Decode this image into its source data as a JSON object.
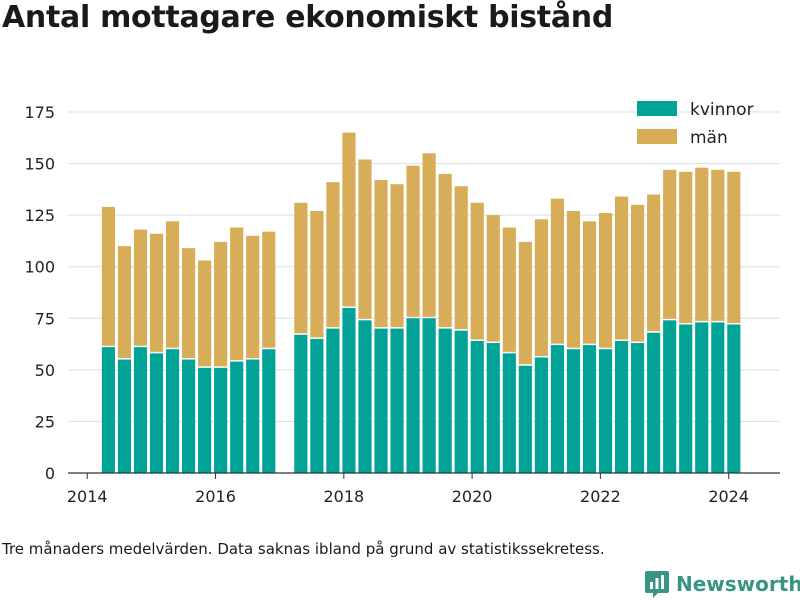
{
  "title": "Antal mottagare ekonomiskt bistånd",
  "caption": "Tre månaders medelvärden. Data saknas ibland på grund av statistikssekretess.",
  "brand": {
    "name": "Newsworthy",
    "color": "#3a9486"
  },
  "colors": {
    "kvinnor": "#00a396",
    "man": "#d8ad58",
    "grid": "#dddddd",
    "axis": "#333333"
  },
  "chart_data": {
    "type": "bar",
    "stacked": true,
    "x_unit": "year",
    "x": [
      2014.33,
      2014.58,
      2014.83,
      2015.08,
      2015.33,
      2015.58,
      2015.83,
      2016.08,
      2016.33,
      2016.58,
      2016.83,
      2017.33,
      2017.58,
      2017.83,
      2018.08,
      2018.33,
      2018.58,
      2018.83,
      2019.08,
      2019.33,
      2019.58,
      2019.83,
      2020.08,
      2020.33,
      2020.58,
      2020.83,
      2021.08,
      2021.33,
      2021.58,
      2021.83,
      2022.08,
      2022.33,
      2022.58,
      2022.83,
      2023.08,
      2023.33,
      2023.58,
      2023.83,
      2024.08
    ],
    "series": [
      {
        "name": "kvinnor",
        "values": [
          61,
          55,
          61,
          58,
          60,
          55,
          51,
          51,
          54,
          55,
          60,
          67,
          65,
          70,
          80,
          74,
          70,
          70,
          75,
          75,
          70,
          69,
          64,
          63,
          58,
          52,
          56,
          62,
          60,
          62,
          60,
          64,
          63,
          68,
          74,
          72,
          73,
          73,
          72
        ]
      },
      {
        "name": "män",
        "values": [
          68,
          55,
          57,
          58,
          62,
          54,
          52,
          61,
          65,
          60,
          57,
          64,
          62,
          71,
          85,
          78,
          72,
          70,
          74,
          80,
          75,
          70,
          67,
          62,
          61,
          60,
          67,
          71,
          67,
          60,
          66,
          70,
          67,
          67,
          73,
          74,
          75,
          74,
          74
        ]
      }
    ],
    "xlim": [
      2013.7,
      2024.8
    ],
    "ylim": [
      0,
      175
    ],
    "yticks": [
      0,
      25,
      50,
      75,
      100,
      125,
      150,
      175
    ],
    "xticks": [
      2014,
      2016,
      2018,
      2020,
      2022,
      2024
    ],
    "legend": [
      "kvinnor",
      "män"
    ],
    "legend_position": "top-right",
    "grid": "horizontal"
  }
}
